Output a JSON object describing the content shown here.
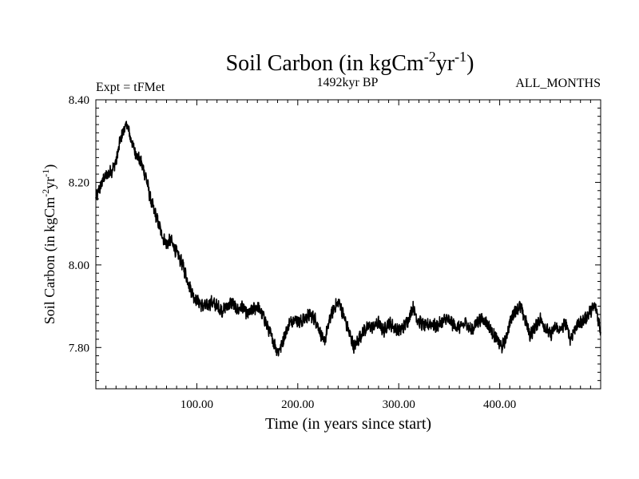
{
  "chart_data": {
    "type": "line",
    "title_main": "Soil Carbon (in kgCm",
    "title_sup1": "-2",
    "title_mid": "yr",
    "title_sup2": "-1",
    "title_end": ")",
    "subtitle_left": "Expt = tFMet",
    "subtitle_center": "1492kyr BP",
    "subtitle_right": "ALL_MONTHS",
    "xlabel": "Time (in years since start)",
    "ylabel_main": "Soil Carbon (in kgCm",
    "ylabel_sup1": "-2",
    "ylabel_mid": "yr",
    "ylabel_sup2": "-1",
    "ylabel_end": ")",
    "xlim": [
      0,
      500
    ],
    "ylim": [
      7.7,
      8.4
    ],
    "xticks_major": [
      100,
      200,
      300,
      400
    ],
    "xtick_labels": [
      "100.00",
      "200.00",
      "300.00",
      "400.00"
    ],
    "yticks_major": [
      7.8,
      8.0,
      8.2,
      8.4
    ],
    "ytick_labels": [
      "7.80",
      "8.00",
      "8.20",
      "8.40"
    ],
    "series": [
      {
        "name": "Soil Carbon",
        "color": "#000000",
        "x": [
          0,
          3,
          8,
          12,
          16,
          20,
          24,
          28,
          31,
          34,
          38,
          42,
          46,
          50,
          54,
          58,
          62,
          66,
          70,
          74,
          78,
          82,
          86,
          90,
          94,
          98,
          102,
          106,
          110,
          115,
          120,
          125,
          130,
          135,
          140,
          145,
          150,
          155,
          160,
          165,
          170,
          175,
          180,
          183,
          187,
          192,
          197,
          202,
          207,
          212,
          217,
          222,
          226,
          229,
          233,
          237,
          241,
          245,
          249,
          253,
          256,
          260,
          265,
          270,
          275,
          280,
          285,
          290,
          295,
          300,
          305,
          310,
          314,
          318,
          322,
          327,
          332,
          337,
          342,
          347,
          352,
          357,
          362,
          367,
          372,
          377,
          382,
          387,
          392,
          397,
          402,
          406,
          410,
          415,
          420,
          425,
          430,
          435,
          440,
          445,
          450,
          455,
          460,
          465,
          470,
          475,
          480,
          485,
          490,
          495,
          500
        ],
        "y": [
          8.16,
          8.18,
          8.21,
          8.22,
          8.23,
          8.25,
          8.3,
          8.33,
          8.34,
          8.31,
          8.28,
          8.26,
          8.24,
          8.21,
          8.16,
          8.13,
          8.1,
          8.07,
          8.05,
          8.06,
          8.04,
          8.02,
          8.0,
          7.97,
          7.94,
          7.92,
          7.91,
          7.9,
          7.9,
          7.91,
          7.9,
          7.89,
          7.9,
          7.91,
          7.89,
          7.9,
          7.88,
          7.89,
          7.9,
          7.88,
          7.85,
          7.82,
          7.79,
          7.8,
          7.83,
          7.86,
          7.87,
          7.86,
          7.87,
          7.88,
          7.87,
          7.84,
          7.81,
          7.84,
          7.88,
          7.9,
          7.91,
          7.88,
          7.85,
          7.82,
          7.8,
          7.82,
          7.84,
          7.85,
          7.85,
          7.86,
          7.84,
          7.86,
          7.85,
          7.84,
          7.85,
          7.87,
          7.9,
          7.87,
          7.86,
          7.85,
          7.86,
          7.85,
          7.86,
          7.87,
          7.86,
          7.85,
          7.85,
          7.86,
          7.84,
          7.86,
          7.87,
          7.86,
          7.84,
          7.82,
          7.8,
          7.82,
          7.86,
          7.89,
          7.9,
          7.87,
          7.83,
          7.85,
          7.87,
          7.85,
          7.83,
          7.85,
          7.84,
          7.86,
          7.82,
          7.85,
          7.86,
          7.87,
          7.89,
          7.9,
          7.84
        ]
      }
    ]
  }
}
